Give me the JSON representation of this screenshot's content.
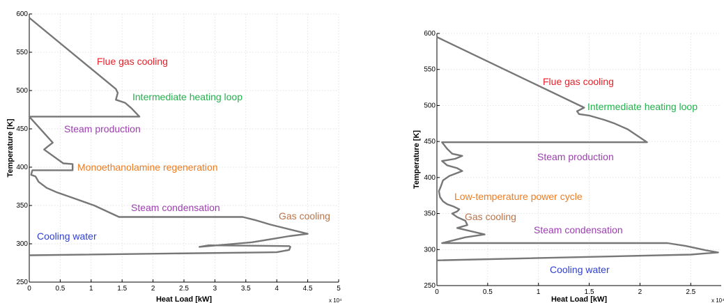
{
  "chart_data": [
    {
      "type": "line",
      "xlabel": "Heat Load [kW]",
      "ylabel": "Temperature [K]",
      "x_multiplier": "x 10⁴",
      "xlim": [
        0,
        5
      ],
      "ylim": [
        250,
        600
      ],
      "xticks": [
        0,
        0.5,
        1,
        1.5,
        2,
        2.5,
        3,
        3.5,
        4,
        4.5,
        5
      ],
      "xtick_labels": [
        "0",
        "0.5",
        "1",
        "1.5",
        "2",
        "2.5",
        "3",
        "3.5",
        "4",
        "4.5",
        "5"
      ],
      "yticks": [
        250,
        300,
        350,
        400,
        450,
        500,
        550,
        600
      ],
      "ytick_labels": [
        "250",
        "300",
        "350",
        "400",
        "450",
        "500",
        "550",
        "600"
      ],
      "grid": true,
      "series": [
        {
          "color": "#777777",
          "points": [
            [
              0,
              595
            ],
            [
              1.4,
              502
            ],
            [
              1.43,
              497
            ],
            [
              1.4,
              488
            ],
            [
              1.55,
              484
            ],
            [
              1.65,
              477
            ],
            [
              1.78,
              466
            ],
            [
              0,
              466
            ],
            [
              0.38,
              432
            ],
            [
              0.3,
              427
            ],
            [
              0.24,
              423
            ],
            [
              0.55,
              405
            ],
            [
              0.7,
              404
            ],
            [
              0.7,
              396
            ],
            [
              0.05,
              396
            ],
            [
              0.03,
              390
            ],
            [
              0.1,
              388
            ],
            [
              0.15,
              381
            ],
            [
              0.28,
              373
            ],
            [
              0.45,
              367
            ],
            [
              0.7,
              360
            ],
            [
              1.05,
              350
            ],
            [
              1.45,
              335
            ],
            [
              3.45,
              335
            ],
            [
              3.65,
              331
            ],
            [
              3.9,
              325
            ],
            [
              4.5,
              313
            ],
            [
              4.2,
              310
            ],
            [
              3.98,
              307
            ],
            [
              3.6,
              302
            ],
            [
              2.75,
              296
            ],
            [
              2.9,
              298
            ],
            [
              4.2,
              297
            ],
            [
              4.22,
              296
            ],
            [
              4.2,
              292
            ],
            [
              4.0,
              289
            ],
            [
              0,
              285
            ]
          ]
        }
      ],
      "annotations": [
        {
          "text": "Flue gas cooling",
          "color": "#e8202a"
        },
        {
          "text": "Intermediate heating loop",
          "color": "#22b14c"
        },
        {
          "text": "Steam production",
          "color": "#9b3fae"
        },
        {
          "text": "Monoethanolamine regeneration",
          "color": "#f07b1c"
        },
        {
          "text": "Steam condensation",
          "color": "#9b3fae"
        },
        {
          "text": "Gas cooling",
          "color": "#b8744a"
        },
        {
          "text": "Cooling water",
          "color": "#3040d0"
        }
      ]
    },
    {
      "type": "line",
      "xlabel": "Heat Load [kW]",
      "ylabel": "Temperature [K]",
      "x_multiplier": "x 10⁴",
      "xlim": [
        0,
        2.8
      ],
      "ylim": [
        250,
        600
      ],
      "xticks": [
        0,
        0.5,
        1,
        1.5,
        2,
        2.5
      ],
      "xtick_labels": [
        "0",
        "0.5",
        "1",
        "1.5",
        "2",
        "2.5"
      ],
      "yticks": [
        250,
        300,
        350,
        400,
        450,
        500,
        550,
        600
      ],
      "ytick_labels": [
        "250",
        "300",
        "350",
        "400",
        "450",
        "500",
        "550",
        "600"
      ],
      "grid": true,
      "series": [
        {
          "color": "#777777",
          "points": [
            [
              0,
              595
            ],
            [
              1.45,
              497
            ],
            [
              1.38,
              492
            ],
            [
              1.4,
              488
            ],
            [
              1.5,
              486
            ],
            [
              1.65,
              480
            ],
            [
              1.75,
              475
            ],
            [
              1.88,
              467
            ],
            [
              2.07,
              449
            ],
            [
              0.05,
              449
            ],
            [
              0.1,
              440
            ],
            [
              0.15,
              433
            ],
            [
              0.25,
              430
            ],
            [
              0.18,
              426
            ],
            [
              0.05,
              423
            ],
            [
              0.1,
              417
            ],
            [
              0.2,
              413
            ],
            [
              0.25,
              409
            ],
            [
              0.12,
              402
            ],
            [
              0.06,
              396
            ],
            [
              0.04,
              388
            ],
            [
              0.02,
              381
            ],
            [
              0.03,
              373
            ],
            [
              0.06,
              367
            ],
            [
              0.1,
              363
            ],
            [
              0.16,
              360
            ],
            [
              0.22,
              356
            ],
            [
              0.2,
              353
            ],
            [
              0.15,
              350
            ],
            [
              0.2,
              345
            ],
            [
              0.28,
              340
            ],
            [
              0.3,
              334
            ],
            [
              0.2,
              330
            ],
            [
              0.35,
              325
            ],
            [
              0.47,
              321
            ],
            [
              0.28,
              317
            ],
            [
              0.05,
              309
            ],
            [
              2.27,
              309
            ],
            [
              2.45,
              305
            ],
            [
              2.55,
              302
            ],
            [
              2.65,
              299
            ],
            [
              2.77,
              296
            ],
            [
              2.5,
              293
            ],
            [
              0,
              285
            ]
          ]
        }
      ],
      "annotations": [
        {
          "text": "Flue gas cooling",
          "color": "#e8202a"
        },
        {
          "text": "Intermediate heating loop",
          "color": "#22b14c"
        },
        {
          "text": "Steam production",
          "color": "#9b3fae"
        },
        {
          "text": "Low-temperature power cycle",
          "color": "#f07b1c"
        },
        {
          "text": "Gas cooling",
          "color": "#b8744a"
        },
        {
          "text": "Steam condensation",
          "color": "#9b3fae"
        },
        {
          "text": "Cooling water",
          "color": "#3040d0"
        }
      ]
    }
  ]
}
